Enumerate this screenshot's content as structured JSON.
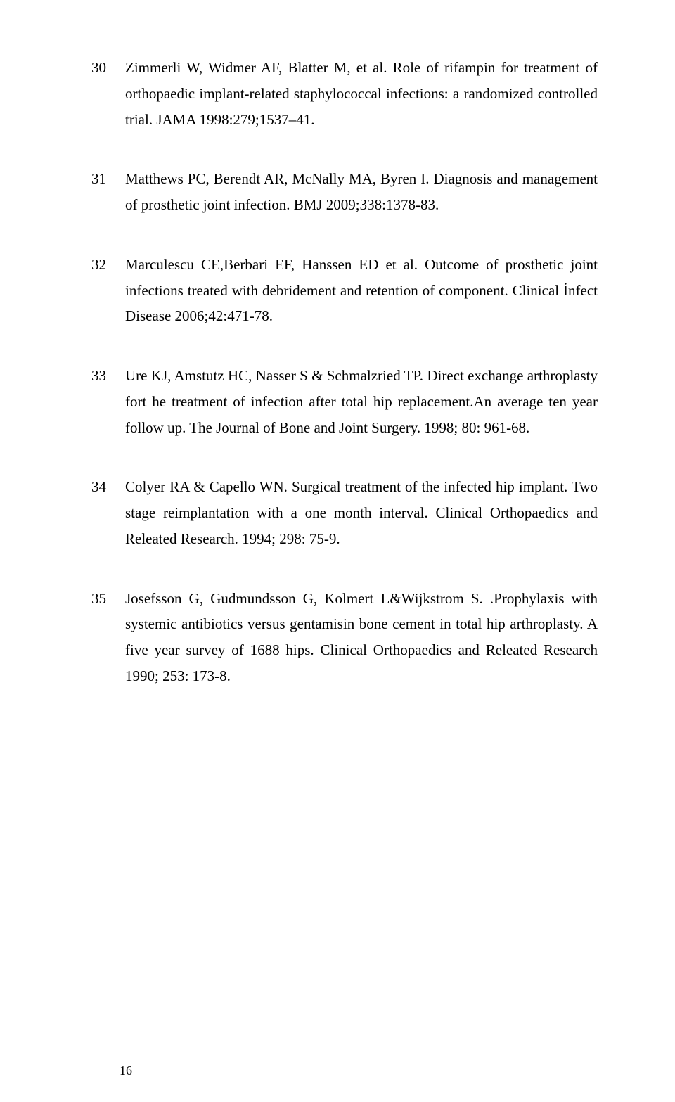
{
  "references": [
    {
      "num": "30",
      "text": "Zimmerli W, Widmer AF, Blatter M, et al. Role of rifampin for treatment of orthopaedic implant-related staphylococcal infections: a randomized controlled trial. JAMA 1998:279;1537–41."
    },
    {
      "num": "31",
      "text": "Matthews PC, Berendt AR, McNally MA, Byren I. Diagnosis and management of prosthetic joint infection. BMJ 2009;338:1378-83."
    },
    {
      "num": "32",
      "text": "Marculescu CE,Berbari EF, Hanssen ED et al. Outcome of prosthetic joint infections treated with debridement and retention of component. Clinical İnfect Disease 2006;42:471-78."
    },
    {
      "num": "33",
      "text": "Ure KJ, Amstutz HC, Nasser S & Schmalzried TP. Direct exchange arthroplasty fort he treatment of infection after total hip replacement.An average ten year follow up. The Journal of Bone and Joint Surgery. 1998; 80: 961-68."
    },
    {
      "num": "34",
      "text": "Colyer RA & Capello WN. Surgical treatment of the infected hip implant. Two stage reimplantation with a one month interval. Clinical Orthopaedics and Releated Research. 1994; 298: 75-9."
    },
    {
      "num": "35",
      "text": "Josefsson G, Gudmundsson G, Kolmert L&Wijkstrom S. .Prophylaxis with systemic antibiotics versus gentamisin bone cement in total hip arthroplasty. A five year survey of 1688 hips. Clinical Orthopaedics and Releated Research 1990; 253: 173-8."
    }
  ],
  "pageNumber": "16"
}
